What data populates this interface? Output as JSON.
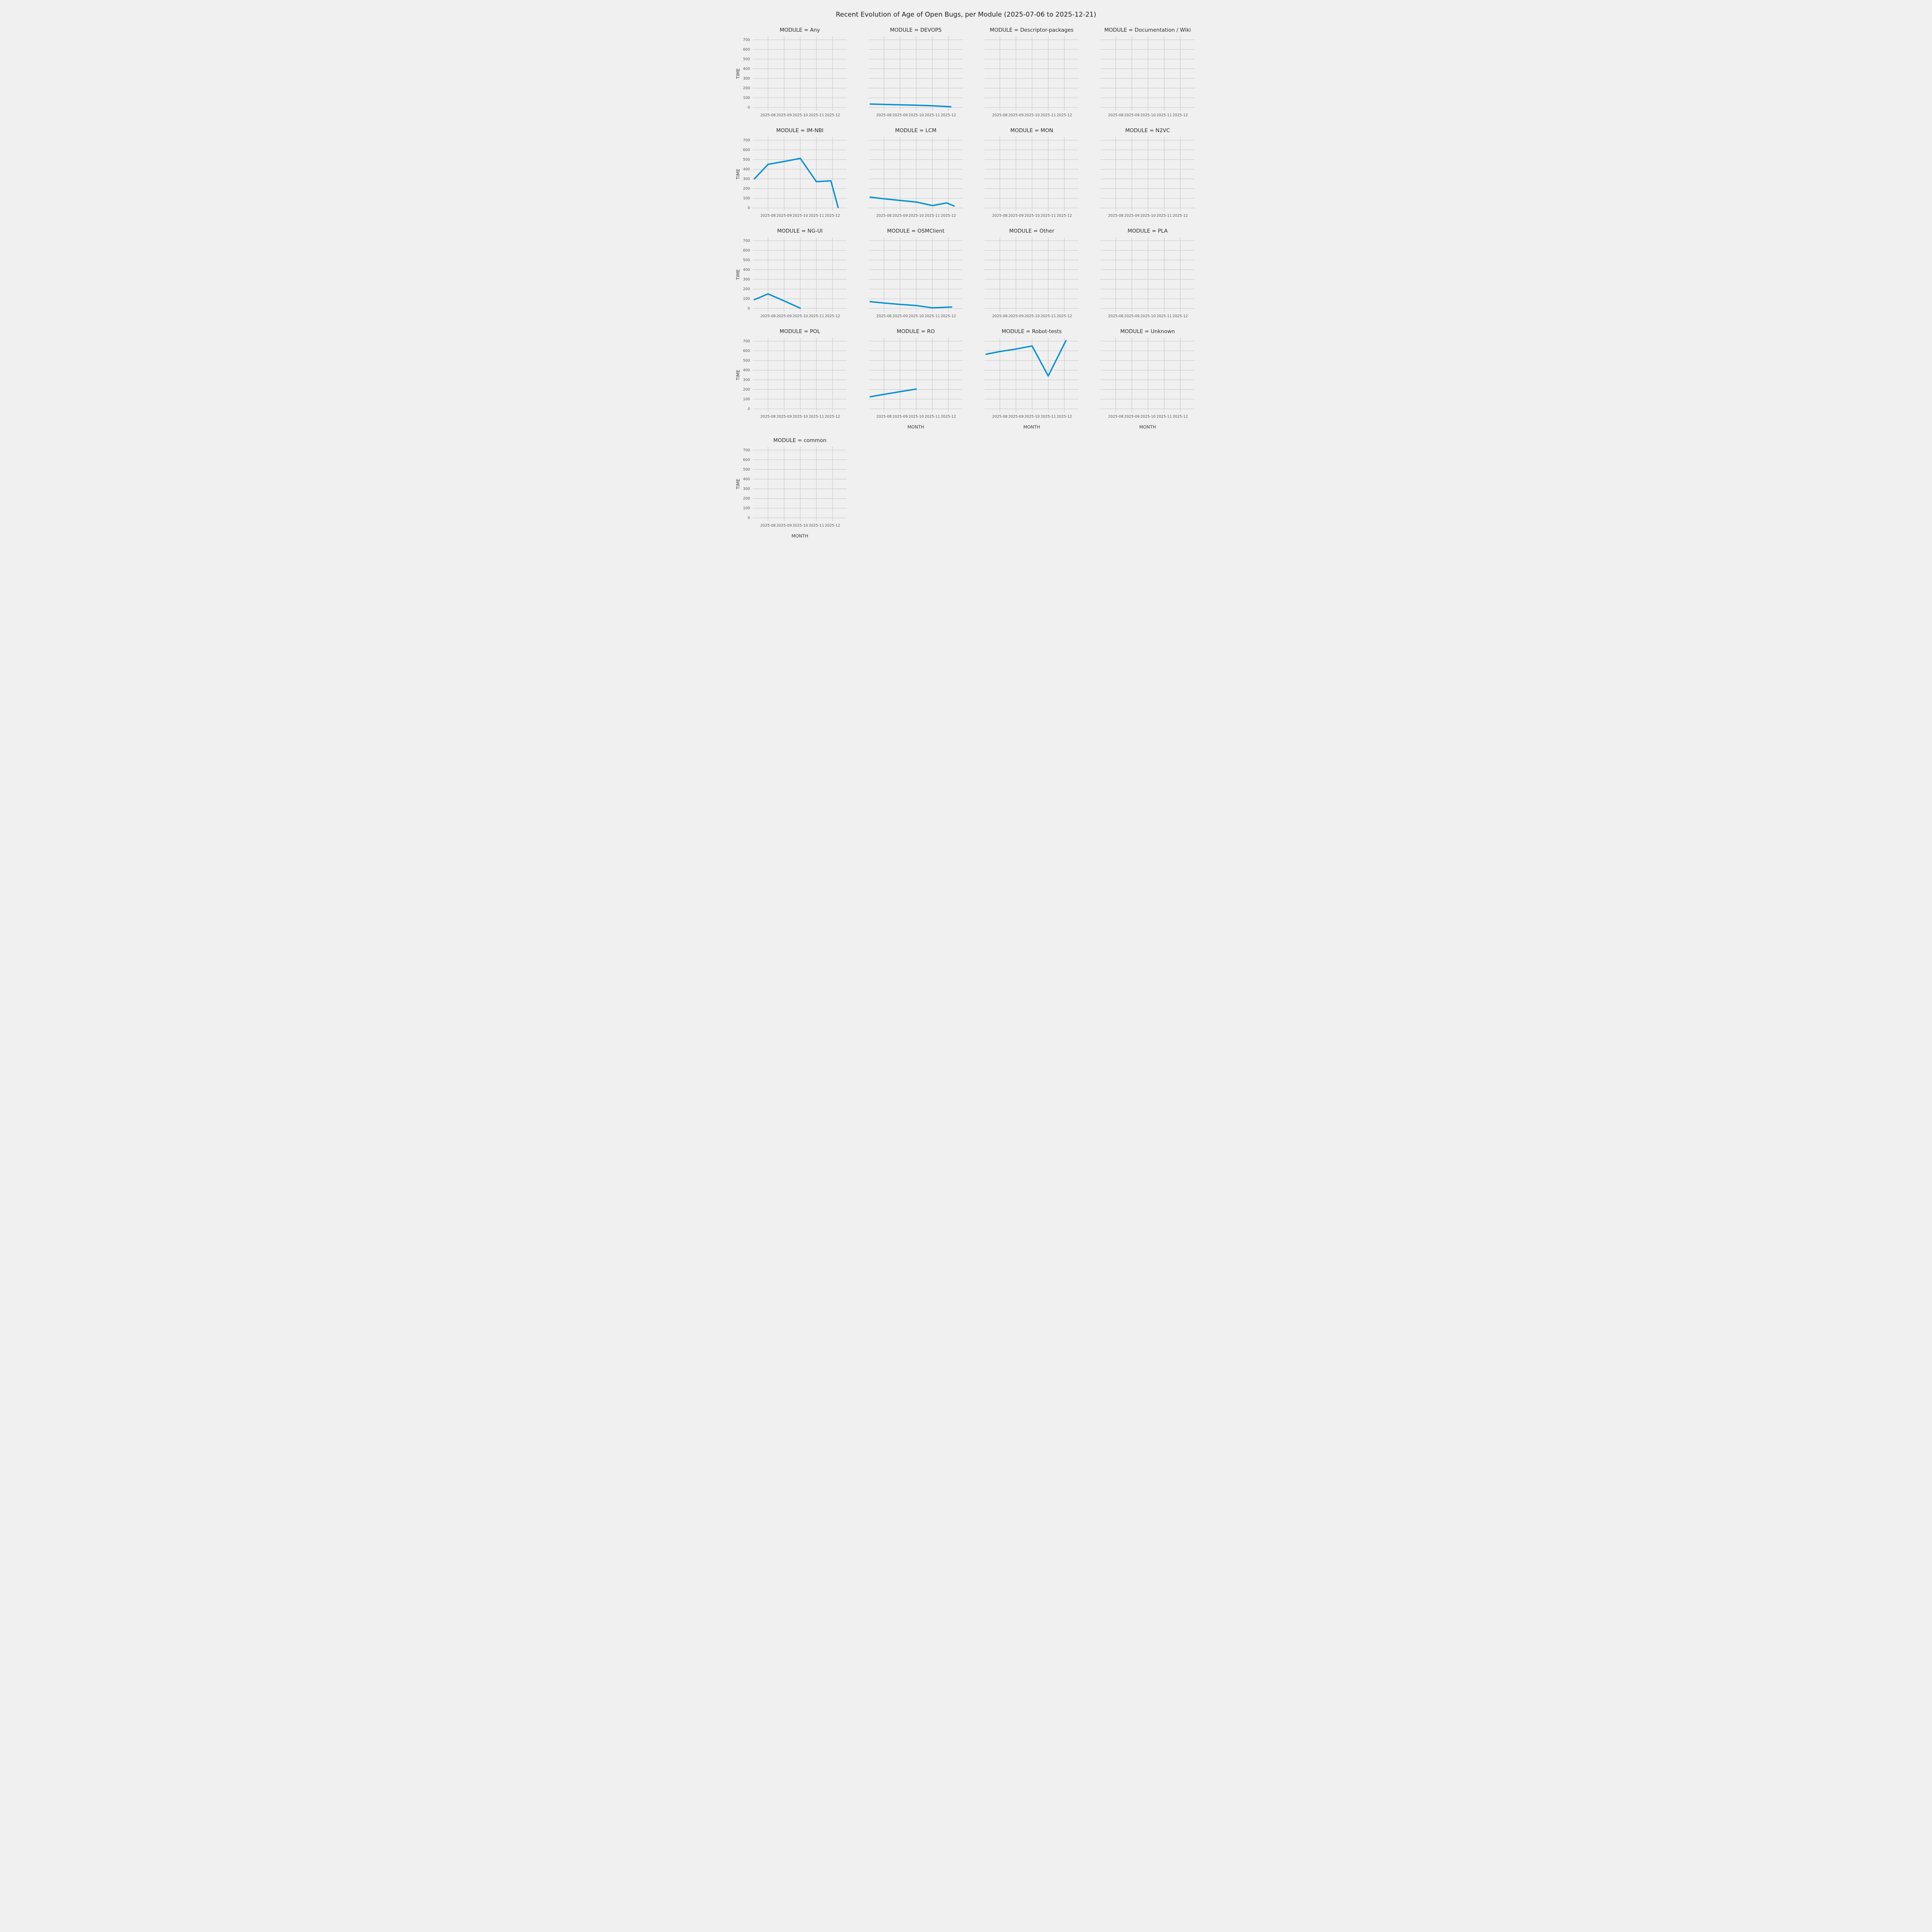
{
  "figure": {
    "title": "Recent Evolution of Age of Open Bugs, per Module (2025-07-06 to 2025-12-21)"
  },
  "chart_data": {
    "type": "line",
    "title": "Recent Evolution of Age of Open Bugs, per Module (2025-07-06 to 2025-12-21)",
    "xlabel": "MONTH",
    "ylabel": "TIME",
    "legend": "none",
    "grid": true,
    "background_color": "#f0f0f0",
    "grid_color": "#cbcbcb",
    "line_color": "#008fd5",
    "x_domain": [
      7.05,
      12.9
    ],
    "y_domain": [
      -35,
      735
    ],
    "y_ticks": [
      0,
      100,
      200,
      300,
      400,
      500,
      600,
      700
    ],
    "x_ticks": [
      {
        "v": 8,
        "label": "2025-08"
      },
      {
        "v": 9,
        "label": "2025-09"
      },
      {
        "v": 10,
        "label": "2025-10"
      },
      {
        "v": 11,
        "label": "2025-11"
      },
      {
        "v": 12,
        "label": "2025-12"
      }
    ],
    "facets": [
      {
        "title": "MODULE = Any",
        "points": []
      },
      {
        "title": "MODULE = DEVOPS",
        "points": [
          [
            7.15,
            36
          ],
          [
            8,
            32
          ],
          [
            9,
            28
          ],
          [
            10,
            24
          ],
          [
            11,
            18
          ],
          [
            12.15,
            8
          ]
        ]
      },
      {
        "title": "MODULE = Descriptor-packages",
        "points": []
      },
      {
        "title": "MODULE = Documentation / Wiki",
        "points": []
      },
      {
        "title": "MODULE = IM-NBI",
        "points": [
          [
            7.15,
            300
          ],
          [
            8,
            450
          ],
          [
            9,
            480
          ],
          [
            10,
            512
          ],
          [
            11,
            272
          ],
          [
            11.9,
            280
          ],
          [
            12.35,
            5
          ]
        ]
      },
      {
        "title": "MODULE = LCM",
        "points": [
          [
            7.15,
            112
          ],
          [
            8,
            95
          ],
          [
            9,
            78
          ],
          [
            10,
            62
          ],
          [
            11,
            25
          ],
          [
            11.9,
            52
          ],
          [
            12.35,
            20
          ]
        ]
      },
      {
        "title": "MODULE = MON",
        "points": []
      },
      {
        "title": "MODULE = N2VC",
        "points": []
      },
      {
        "title": "MODULE = NG-UI",
        "points": [
          [
            7.15,
            90
          ],
          [
            8,
            150
          ],
          [
            9,
            78
          ],
          [
            10,
            3
          ]
        ]
      },
      {
        "title": "MODULE = OSMClient",
        "points": [
          [
            7.15,
            70
          ],
          [
            8,
            56
          ],
          [
            9,
            42
          ],
          [
            10,
            30
          ],
          [
            11,
            6
          ],
          [
            12.2,
            15
          ]
        ]
      },
      {
        "title": "MODULE = Other",
        "points": []
      },
      {
        "title": "MODULE = PLA",
        "points": []
      },
      {
        "title": "MODULE = POL",
        "points": []
      },
      {
        "title": "MODULE = RO",
        "points": [
          [
            7.15,
            125
          ],
          [
            8,
            150
          ],
          [
            9,
            178
          ],
          [
            10,
            205
          ]
        ]
      },
      {
        "title": "MODULE = Robot-tests",
        "points": [
          [
            7.15,
            565
          ],
          [
            8,
            592
          ],
          [
            9,
            618
          ],
          [
            10,
            650
          ],
          [
            11,
            340
          ],
          [
            12.1,
            705
          ]
        ]
      },
      {
        "title": "MODULE = Unknown",
        "points": []
      },
      {
        "title": "MODULE = common",
        "points": []
      }
    ]
  }
}
